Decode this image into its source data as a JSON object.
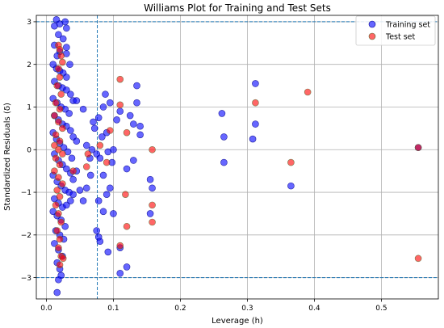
{
  "chart_data": {
    "type": "scatter",
    "title": "Williams Plot for Training and Test Sets",
    "xlabel": "Leverage (h)",
    "ylabel": "Standardized Residuals (δ)",
    "xlim": [
      -0.015,
      0.585
    ],
    "ylim": [
      -3.5,
      3.15
    ],
    "xticks": [
      0.0,
      0.1,
      0.2,
      0.3,
      0.4,
      0.5
    ],
    "xtick_labels": [
      "0.0",
      "0.1",
      "0.2",
      "0.3",
      "0.4",
      "0.5"
    ],
    "yticks": [
      -3,
      -2,
      -1,
      0,
      1,
      2,
      3
    ],
    "ytick_labels": [
      "−3",
      "−2",
      "−1",
      "0",
      "1",
      "2",
      "3"
    ],
    "grid": true,
    "legend_position": "top-right",
    "reference_lines": {
      "horizontal": [
        3,
        -3
      ],
      "vertical": [
        0.076
      ],
      "style": "dashed",
      "color": "#1f77b4"
    },
    "series": [
      {
        "name": "Training set",
        "color": "#0000ff",
        "points": [
          [
            0.012,
            2.9
          ],
          [
            0.015,
            3.05
          ],
          [
            0.02,
            2.95
          ],
          [
            0.028,
            3.0
          ],
          [
            0.03,
            2.85
          ],
          [
            0.018,
            2.7
          ],
          [
            0.025,
            2.6
          ],
          [
            0.012,
            2.45
          ],
          [
            0.03,
            2.4
          ],
          [
            0.02,
            2.3
          ],
          [
            0.016,
            2.2
          ],
          [
            0.03,
            2.25
          ],
          [
            0.01,
            2.0
          ],
          [
            0.015,
            1.9
          ],
          [
            0.02,
            1.85
          ],
          [
            0.025,
            1.8
          ],
          [
            0.03,
            1.7
          ],
          [
            0.035,
            2.0
          ],
          [
            0.012,
            1.6
          ],
          [
            0.018,
            1.5
          ],
          [
            0.024,
            1.45
          ],
          [
            0.03,
            1.4
          ],
          [
            0.036,
            1.3
          ],
          [
            0.04,
            1.15
          ],
          [
            0.01,
            1.2
          ],
          [
            0.016,
            1.1
          ],
          [
            0.022,
            1.0
          ],
          [
            0.028,
            0.95
          ],
          [
            0.034,
            0.85
          ],
          [
            0.012,
            0.8
          ],
          [
            0.018,
            0.7
          ],
          [
            0.024,
            0.6
          ],
          [
            0.03,
            0.55
          ],
          [
            0.036,
            0.45
          ],
          [
            0.04,
            0.3
          ],
          [
            0.01,
            0.4
          ],
          [
            0.015,
            0.25
          ],
          [
            0.02,
            0.15
          ],
          [
            0.026,
            0.05
          ],
          [
            0.032,
            -0.05
          ],
          [
            0.038,
            -0.2
          ],
          [
            0.012,
            -0.1
          ],
          [
            0.018,
            -0.25
          ],
          [
            0.024,
            -0.35
          ],
          [
            0.03,
            -0.45
          ],
          [
            0.036,
            -0.55
          ],
          [
            0.04,
            -0.7
          ],
          [
            0.01,
            -0.6
          ],
          [
            0.016,
            -0.75
          ],
          [
            0.022,
            -0.85
          ],
          [
            0.028,
            -0.95
          ],
          [
            0.034,
            -1.0
          ],
          [
            0.04,
            -1.05
          ],
          [
            0.012,
            -1.15
          ],
          [
            0.018,
            -1.25
          ],
          [
            0.024,
            -1.35
          ],
          [
            0.03,
            -1.3
          ],
          [
            0.036,
            -1.2
          ],
          [
            0.01,
            -1.45
          ],
          [
            0.016,
            -1.55
          ],
          [
            0.022,
            -1.65
          ],
          [
            0.028,
            -1.8
          ],
          [
            0.014,
            -1.9
          ],
          [
            0.02,
            -2.0
          ],
          [
            0.026,
            -2.1
          ],
          [
            0.012,
            -2.2
          ],
          [
            0.018,
            -2.35
          ],
          [
            0.024,
            -2.5
          ],
          [
            0.016,
            -2.65
          ],
          [
            0.02,
            -2.8
          ],
          [
            0.022,
            -2.95
          ],
          [
            0.018,
            -3.05
          ],
          [
            0.016,
            -3.35
          ],
          [
            0.045,
            1.15
          ],
          [
            0.045,
            0.2
          ],
          [
            0.045,
            -0.5
          ],
          [
            0.055,
            0.95
          ],
          [
            0.06,
            0.1
          ],
          [
            0.065,
            -0.2
          ],
          [
            0.068,
            0.0
          ],
          [
            0.07,
            0.65
          ],
          [
            0.072,
            0.5
          ],
          [
            0.075,
            -0.1
          ],
          [
            0.078,
            0.75
          ],
          [
            0.08,
            -0.2
          ],
          [
            0.083,
            0.3
          ],
          [
            0.085,
            1.0
          ],
          [
            0.085,
            -0.6
          ],
          [
            0.088,
            1.3
          ],
          [
            0.09,
            0.4
          ],
          [
            0.092,
            -0.05
          ],
          [
            0.095,
            1.1
          ],
          [
            0.095,
            -0.9
          ],
          [
            0.098,
            -0.3
          ],
          [
            0.1,
            0.0
          ],
          [
            0.1,
            -1.5
          ],
          [
            0.105,
            0.7
          ],
          [
            0.11,
            0.9
          ],
          [
            0.12,
            -0.45
          ],
          [
            0.125,
            0.8
          ],
          [
            0.13,
            -0.25
          ],
          [
            0.13,
            0.6
          ],
          [
            0.135,
            1.1
          ],
          [
            0.14,
            0.55
          ],
          [
            0.14,
            0.35
          ],
          [
            0.155,
            -0.7
          ],
          [
            0.158,
            -0.9
          ],
          [
            0.075,
            -1.9
          ],
          [
            0.078,
            -2.05
          ],
          [
            0.08,
            -2.15
          ],
          [
            0.092,
            -2.4
          ],
          [
            0.11,
            -2.3
          ],
          [
            0.11,
            -2.9
          ],
          [
            0.12,
            -2.75
          ],
          [
            0.135,
            1.5
          ],
          [
            0.155,
            -1.5
          ],
          [
            0.078,
            -1.2
          ],
          [
            0.085,
            -1.45
          ],
          [
            0.09,
            -1.05
          ],
          [
            0.066,
            -0.6
          ],
          [
            0.06,
            -0.9
          ],
          [
            0.05,
            -0.95
          ],
          [
            0.055,
            -1.2
          ],
          [
            0.262,
            0.85
          ],
          [
            0.265,
            0.3
          ],
          [
            0.265,
            -0.3
          ],
          [
            0.308,
            0.25
          ],
          [
            0.312,
            1.55
          ],
          [
            0.312,
            0.6
          ],
          [
            0.365,
            -0.85
          ],
          [
            0.555,
            0.05
          ]
        ]
      },
      {
        "name": "Test set",
        "color": "#ff0000",
        "points": [
          [
            0.018,
            2.45
          ],
          [
            0.02,
            2.35
          ],
          [
            0.022,
            2.2
          ],
          [
            0.024,
            2.05
          ],
          [
            0.018,
            1.9
          ],
          [
            0.02,
            1.7
          ],
          [
            0.016,
            1.5
          ],
          [
            0.022,
            1.3
          ],
          [
            0.014,
            1.1
          ],
          [
            0.02,
            0.95
          ],
          [
            0.012,
            0.8
          ],
          [
            0.018,
            0.65
          ],
          [
            0.024,
            0.5
          ],
          [
            0.014,
            0.35
          ],
          [
            0.02,
            0.2
          ],
          [
            0.012,
            0.1
          ],
          [
            0.018,
            0.0
          ],
          [
            0.024,
            -0.1
          ],
          [
            0.014,
            -0.2
          ],
          [
            0.02,
            -0.35
          ],
          [
            0.012,
            -0.5
          ],
          [
            0.018,
            -0.65
          ],
          [
            0.024,
            -0.8
          ],
          [
            0.016,
            -0.95
          ],
          [
            0.02,
            -1.1
          ],
          [
            0.014,
            -1.3
          ],
          [
            0.018,
            -1.5
          ],
          [
            0.022,
            -1.7
          ],
          [
            0.016,
            -1.9
          ],
          [
            0.02,
            -2.1
          ],
          [
            0.018,
            -2.3
          ],
          [
            0.022,
            -2.5
          ],
          [
            0.02,
            -2.7
          ],
          [
            0.025,
            -2.55
          ],
          [
            0.04,
            -0.5
          ],
          [
            0.06,
            -0.4
          ],
          [
            0.062,
            -0.1
          ],
          [
            0.08,
            0.1
          ],
          [
            0.09,
            -0.3
          ],
          [
            0.095,
            0.45
          ],
          [
            0.11,
            1.65
          ],
          [
            0.11,
            1.05
          ],
          [
            0.12,
            0.4
          ],
          [
            0.118,
            -1.05
          ],
          [
            0.12,
            -1.8
          ],
          [
            0.11,
            -2.25
          ],
          [
            0.158,
            -1.3
          ],
          [
            0.158,
            -1.7
          ],
          [
            0.158,
            0.0
          ],
          [
            0.312,
            1.1
          ],
          [
            0.365,
            -0.3
          ],
          [
            0.39,
            1.35
          ],
          [
            0.555,
            -2.55
          ],
          [
            0.555,
            0.05
          ]
        ]
      }
    ]
  }
}
